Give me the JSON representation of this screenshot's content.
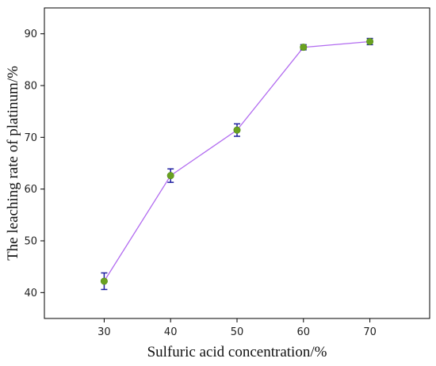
{
  "chart_data": {
    "type": "line",
    "title": "",
    "xlabel": "Sulfuric acid concentration/%",
    "ylabel": "The leaching rate of platinum/%",
    "x": [
      30,
      40,
      50,
      60,
      70
    ],
    "series": [
      {
        "values": [
          42.2,
          62.6,
          71.4,
          87.4,
          88.5
        ],
        "errors": [
          1.6,
          1.3,
          1.2,
          0.5,
          0.6
        ]
      }
    ],
    "xlim": [
      21,
      79
    ],
    "ylim": [
      35,
      95
    ],
    "xticks": [
      30,
      40,
      50,
      60,
      70
    ],
    "yticks": [
      40,
      50,
      60,
      70,
      80,
      90
    ],
    "grid": false,
    "legend": "none",
    "colors": {
      "line": "#b26cf0",
      "marker": "#6aa121",
      "error_bar": "#1f1fa0",
      "axis": "#000000"
    }
  }
}
